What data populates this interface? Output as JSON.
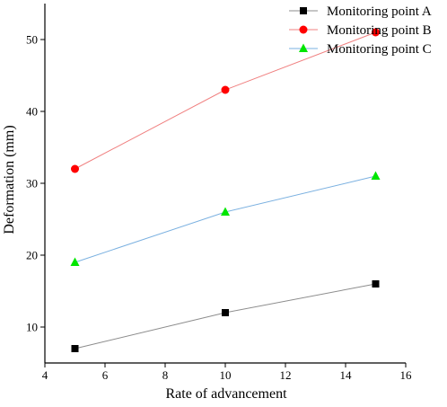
{
  "chart_data": {
    "type": "line",
    "title": "",
    "xlabel": "Rate of advancement",
    "ylabel": "Deformation (mm)",
    "x": [
      5,
      10,
      15
    ],
    "xlim": [
      4,
      16
    ],
    "ylim": [
      5,
      55
    ],
    "xticks": [
      4,
      6,
      8,
      10,
      12,
      14,
      16
    ],
    "yticks": [
      10,
      20,
      30,
      40,
      50
    ],
    "grid": false,
    "legend_position": "top-right",
    "series": [
      {
        "name": "Monitoring point A",
        "values": [
          7,
          12,
          16
        ],
        "marker": "square",
        "marker_color": "#000000",
        "line_color": "#8c8c8c"
      },
      {
        "name": "Monitoring point B",
        "values": [
          32,
          43,
          51
        ],
        "marker": "circle",
        "marker_color": "#ff0000",
        "line_color": "#f08080"
      },
      {
        "name": "Monitoring point C",
        "values": [
          19,
          26,
          31
        ],
        "marker": "triangle",
        "marker_color": "#00e600",
        "line_color": "#7ab0e0"
      }
    ]
  }
}
